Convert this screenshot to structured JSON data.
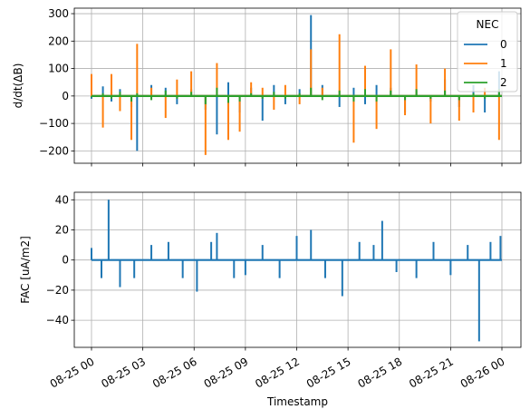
{
  "chart_data": [
    {
      "type": "line",
      "title": "",
      "xlabel": "",
      "ylabel": "d/dt(ΔB)",
      "ylim": [
        -245,
        320
      ],
      "yticks": [
        -200,
        -100,
        0,
        100,
        200,
        300
      ],
      "grid": true,
      "legend": {
        "title": "NEC",
        "placement": "top-right"
      },
      "x": [
        "2024-08-25 00:00",
        "2024-08-25 00:40",
        "2024-08-25 01:10",
        "2024-08-25 01:40",
        "2024-08-25 02:20",
        "2024-08-25 02:40",
        "2024-08-25 03:30",
        "2024-08-25 04:20",
        "2024-08-25 05:00",
        "2024-08-25 05:50",
        "2024-08-25 06:40",
        "2024-08-25 07:20",
        "2024-08-25 08:00",
        "2024-08-25 08:40",
        "2024-08-25 09:20",
        "2024-08-25 10:00",
        "2024-08-25 10:40",
        "2024-08-25 11:20",
        "2024-08-25 12:10",
        "2024-08-25 12:50",
        "2024-08-25 13:30",
        "2024-08-25 14:30",
        "2024-08-25 15:20",
        "2024-08-25 16:00",
        "2024-08-25 16:40",
        "2024-08-25 17:30",
        "2024-08-25 18:20",
        "2024-08-25 19:00",
        "2024-08-25 19:50",
        "2024-08-25 20:40",
        "2024-08-25 21:30",
        "2024-08-25 22:20",
        "2024-08-25 23:00",
        "2024-08-25 23:50"
      ],
      "series": [
        {
          "name": "0",
          "color": "#1f77b4",
          "values": [
            -10,
            35,
            -20,
            25,
            -40,
            -200,
            40,
            30,
            -30,
            25,
            -50,
            -140,
            50,
            -60,
            30,
            -90,
            40,
            -30,
            25,
            295,
            40,
            -40,
            30,
            -30,
            40,
            30,
            -60,
            20,
            -20,
            60,
            -40,
            40,
            -60,
            90
          ]
        },
        {
          "name": "1",
          "color": "#ff7f0e",
          "values": [
            80,
            -115,
            80,
            -55,
            -160,
            190,
            30,
            -80,
            60,
            90,
            -215,
            120,
            -160,
            -130,
            50,
            30,
            -50,
            40,
            -30,
            170,
            30,
            225,
            -170,
            110,
            -120,
            170,
            -70,
            115,
            -100,
            100,
            -90,
            -60,
            30,
            -160
          ]
        },
        {
          "name": "2",
          "color": "#2ca02c",
          "values": [
            -5,
            10,
            -10,
            15,
            -20,
            10,
            -15,
            20,
            -10,
            15,
            -30,
            30,
            -25,
            -20,
            10,
            -10,
            15,
            -10,
            10,
            30,
            -15,
            20,
            -20,
            25,
            -20,
            20,
            -15,
            25,
            -10,
            20,
            -15,
            10,
            -10,
            25
          ]
        }
      ]
    },
    {
      "type": "line",
      "title": "",
      "xlabel": "Timestamp",
      "ylabel": "FAC [uA/m2]",
      "ylim": [
        -58,
        45
      ],
      "yticks": [
        -40,
        -20,
        0,
        20,
        40
      ],
      "grid": true,
      "xticks": [
        "08-25 00",
        "08-25 03",
        "08-25 06",
        "08-25 09",
        "08-25 12",
        "08-25 15",
        "08-25 18",
        "08-25 21",
        "08-26 00"
      ],
      "x": [
        "2024-08-25 00:00",
        "2024-08-25 00:35",
        "2024-08-25 01:00",
        "2024-08-25 01:40",
        "2024-08-25 02:30",
        "2024-08-25 03:30",
        "2024-08-25 04:30",
        "2024-08-25 05:20",
        "2024-08-25 06:10",
        "2024-08-25 07:00",
        "2024-08-25 07:20",
        "2024-08-25 08:20",
        "2024-08-25 09:00",
        "2024-08-25 10:00",
        "2024-08-25 11:00",
        "2024-08-25 12:00",
        "2024-08-25 12:50",
        "2024-08-25 13:40",
        "2024-08-25 14:40",
        "2024-08-25 15:40",
        "2024-08-25 16:30",
        "2024-08-25 17:00",
        "2024-08-25 17:50",
        "2024-08-25 19:00",
        "2024-08-25 20:00",
        "2024-08-25 21:00",
        "2024-08-25 22:00",
        "2024-08-25 22:40",
        "2024-08-25 23:20",
        "2024-08-25 23:55"
      ],
      "series": [
        {
          "name": "FAC",
          "color": "#1f77b4",
          "values": [
            8,
            -12,
            40,
            -18,
            -12,
            10,
            12,
            -12,
            -21,
            12,
            18,
            -12,
            -10,
            10,
            -12,
            16,
            20,
            -12,
            -24,
            12,
            10,
            26,
            -8,
            -12,
            12,
            -10,
            10,
            -54,
            12,
            16
          ]
        }
      ]
    }
  ]
}
